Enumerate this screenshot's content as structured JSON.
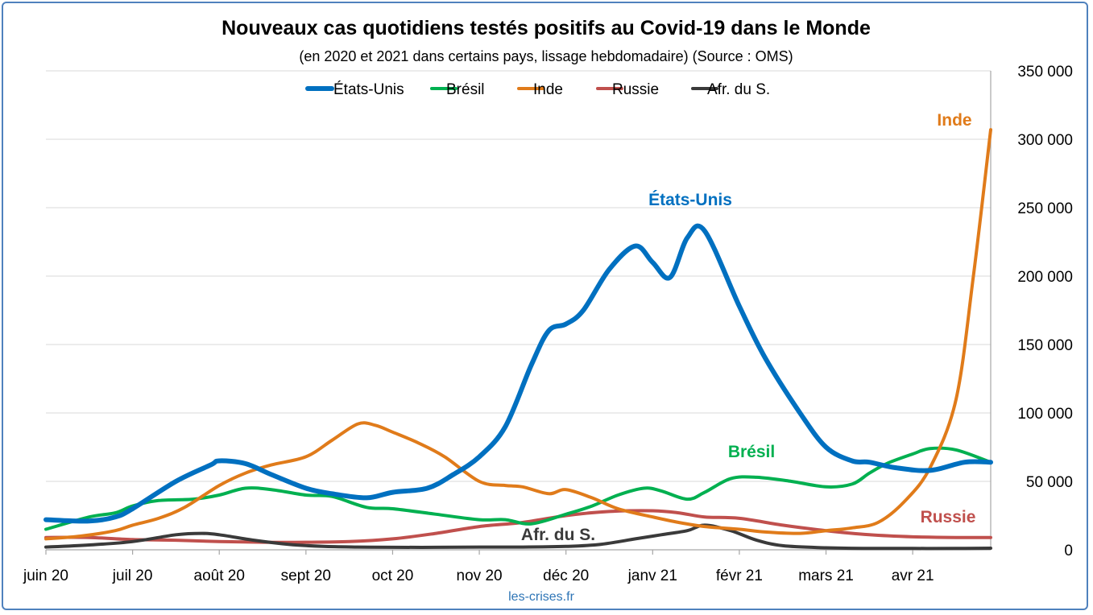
{
  "chart_data": {
    "type": "line",
    "title": "Nouveaux cas quotidiens testés positifs au Covid-19 dans le Monde",
    "subtitle": "(en 2020 et 2021 dans certains pays, lissage hebdomadaire) (Source : OMS)",
    "source_note": "les-crises.fr",
    "x_ticks": [
      "juin 20",
      "juil 20",
      "août 20",
      "sept 20",
      "oct 20",
      "nov 20",
      "déc 20",
      "janv 21",
      "févr 21",
      "mars 21",
      "avr 21"
    ],
    "y_ticks": [
      "0",
      "50 000",
      "100 000",
      "150 000",
      "200 000",
      "250 000",
      "300 000",
      "350 000"
    ],
    "ylim": [
      0,
      350000
    ],
    "y_axis_position": "right",
    "grid": true,
    "legend_position": "top",
    "x_unit": "months since juin 20 (0 = 1 juin 2020)",
    "series": [
      {
        "name": "États-Unis",
        "label": "États-Unis",
        "color": "#0070c0",
        "x": [
          0,
          0.5,
          0.8,
          1,
          1.5,
          1.9,
          2,
          2.3,
          2.6,
          3,
          3.3,
          3.7,
          4,
          4.4,
          4.7,
          5,
          5.3,
          5.6,
          5.8,
          6,
          6.2,
          6.5,
          6.8,
          7,
          7.2,
          7.4,
          7.6,
          8.0,
          8.3,
          8.7,
          9.0,
          9.3,
          9.5,
          9.8,
          10.2,
          10.6,
          10.9
        ],
        "y": [
          22000,
          21000,
          24000,
          30000,
          50000,
          62000,
          65000,
          63000,
          55000,
          45000,
          41000,
          38000,
          42000,
          45000,
          55000,
          68000,
          90000,
          135000,
          160000,
          165000,
          175000,
          205000,
          222000,
          210000,
          199000,
          228000,
          233000,
          178000,
          140000,
          100000,
          75000,
          65000,
          64000,
          60000,
          58000,
          64000,
          64000
        ]
      },
      {
        "name": "Brésil",
        "label": "Brésil",
        "color": "#00b050",
        "x": [
          0,
          0.5,
          0.8,
          1,
          1.3,
          1.7,
          2,
          2.3,
          2.6,
          3,
          3.3,
          3.7,
          4,
          4.5,
          5,
          5.3,
          5.6,
          6,
          6.3,
          6.6,
          6.9,
          7.1,
          7.4,
          7.6,
          7.9,
          8.2,
          8.6,
          9,
          9.3,
          9.5,
          9.7,
          10,
          10.2,
          10.5,
          10.9
        ],
        "y": [
          15000,
          24000,
          27000,
          32000,
          36000,
          37000,
          40000,
          45000,
          44000,
          40000,
          39000,
          31000,
          30000,
          26000,
          22000,
          22000,
          19000,
          26000,
          32000,
          40000,
          45000,
          43000,
          37000,
          42000,
          52000,
          53000,
          50000,
          46000,
          48000,
          56000,
          63000,
          70000,
          74000,
          73000,
          64000
        ]
      },
      {
        "name": "Inde",
        "label": "Inde",
        "color": "#e07b1a",
        "x": [
          0,
          0.4,
          0.8,
          1,
          1.3,
          1.6,
          2,
          2.3,
          2.6,
          3,
          3.3,
          3.6,
          3.8,
          4,
          4.3,
          4.6,
          5,
          5.3,
          5.5,
          5.8,
          6,
          6.3,
          6.6,
          7,
          7.3,
          7.6,
          8,
          8.3,
          8.7,
          9,
          9.3,
          9.6,
          9.9,
          10.2,
          10.5,
          10.7,
          10.9
        ],
        "y": [
          8000,
          10000,
          14000,
          18000,
          23000,
          31000,
          47000,
          56000,
          62000,
          68000,
          80000,
          92000,
          91000,
          86000,
          78000,
          68000,
          50000,
          47000,
          46000,
          41000,
          44000,
          38000,
          30000,
          24000,
          20000,
          17000,
          15000,
          13000,
          12000,
          14000,
          16000,
          20000,
          35000,
          60000,
          110000,
          200000,
          307000
        ]
      },
      {
        "name": "Russie",
        "label": "Russie",
        "color": "#c0504d",
        "x": [
          0,
          0.5,
          1,
          1.5,
          2,
          2.5,
          3,
          3.5,
          4,
          4.5,
          5,
          5.5,
          6,
          6.5,
          7,
          7.3,
          7.6,
          8,
          8.5,
          9,
          9.5,
          10,
          10.5,
          10.9
        ],
        "y": [
          9000,
          9000,
          7500,
          7000,
          6000,
          5500,
          5500,
          6000,
          8000,
          12000,
          17000,
          20000,
          25000,
          28000,
          28500,
          27000,
          24000,
          23000,
          18000,
          14000,
          11000,
          9500,
          9000,
          9000
        ]
      },
      {
        "name": "Afr. du S.",
        "label": "Afr. du S.",
        "color": "#3a3a3a",
        "x": [
          0,
          0.5,
          1,
          1.5,
          1.8,
          2,
          2.4,
          2.8,
          3.2,
          3.6,
          4,
          4.5,
          5,
          5.5,
          6,
          6.4,
          6.8,
          7.1,
          7.4,
          7.6,
          7.9,
          8.2,
          8.5,
          9,
          9.5,
          10,
          10.5,
          10.9
        ],
        "y": [
          2000,
          3500,
          6000,
          11000,
          12000,
          11000,
          7000,
          4000,
          2500,
          2000,
          1800,
          1800,
          2000,
          2000,
          2500,
          4000,
          8000,
          11000,
          14000,
          18000,
          14000,
          7000,
          3000,
          1500,
          1000,
          1000,
          1000,
          1200
        ]
      }
    ],
    "annotations": [
      {
        "text": "Inde",
        "series": "Inde"
      },
      {
        "text": "États-Unis",
        "series": "États-Unis"
      },
      {
        "text": "Brésil",
        "series": "Brésil"
      },
      {
        "text": "Russie",
        "series": "Russie"
      },
      {
        "text": "Afr. du S.",
        "series": "Afr. du S."
      }
    ]
  }
}
